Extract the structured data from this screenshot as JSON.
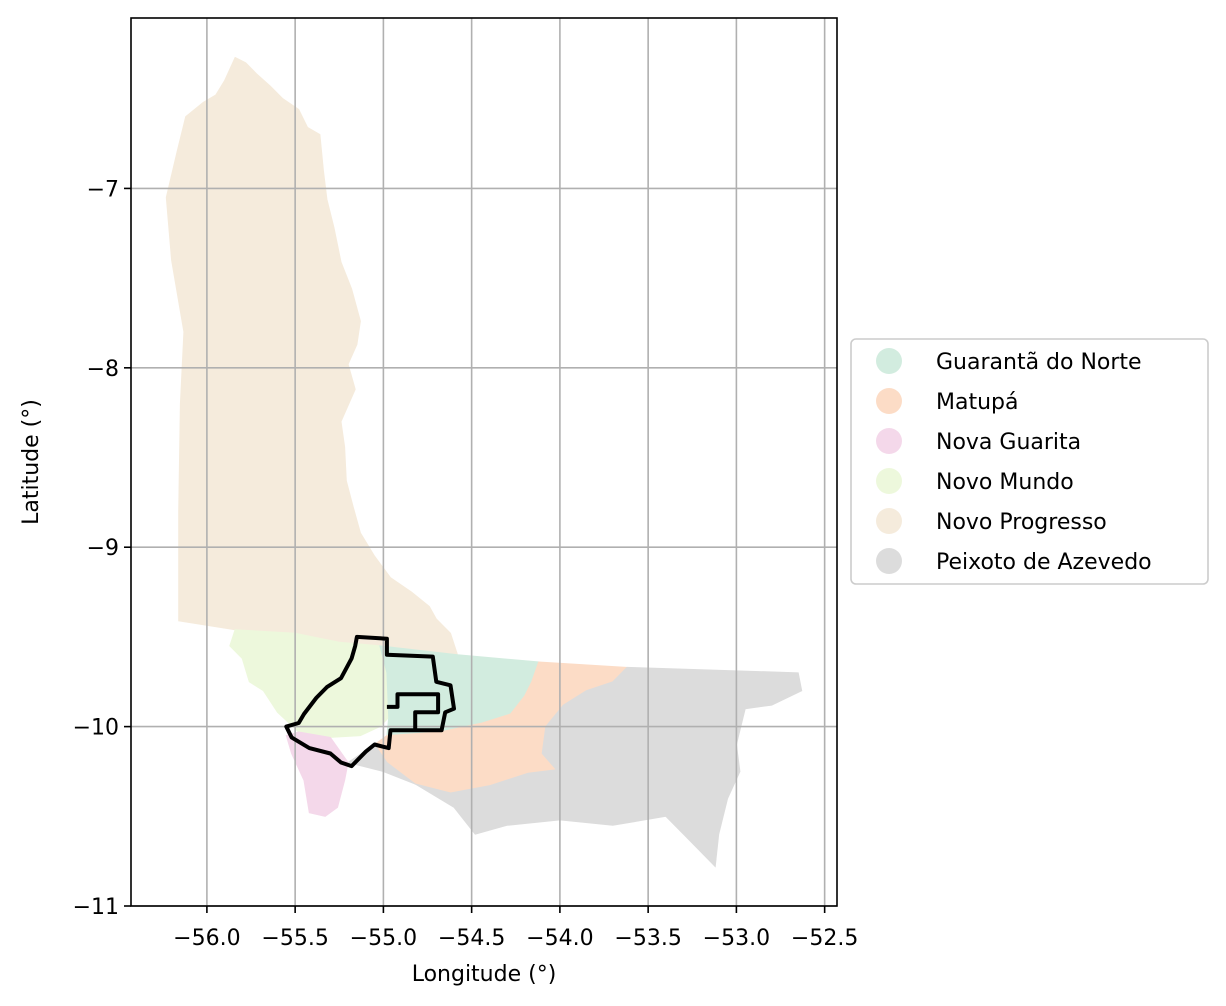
{
  "axes": {
    "xlabel": "Longitude (°)",
    "ylabel": "Latitude (°)",
    "xlim": [
      -56.43,
      -52.43
    ],
    "ylim": [
      -11.0,
      -6.05
    ],
    "xticks": [
      -56.0,
      -55.5,
      -55.0,
      -54.5,
      -54.0,
      -53.5,
      -53.0,
      -52.5
    ],
    "yticks": [
      -7,
      -8,
      -9,
      -10,
      -11
    ],
    "xtick_labels": [
      "−56.0",
      "−55.5",
      "−55.0",
      "−54.5",
      "−54.0",
      "−53.5",
      "−53.0",
      "−52.5"
    ],
    "ytick_labels": [
      "−7",
      "−8",
      "−9",
      "−10",
      "−11"
    ],
    "grid": true
  },
  "legend": {
    "placement": "right, outside plot",
    "items": [
      {
        "label": "Guarantã do Norte",
        "color": "#d2ecdf"
      },
      {
        "label": "Matupá",
        "color": "#fcdcc6"
      },
      {
        "label": "Nova Guarita",
        "color": "#f4d8ea"
      },
      {
        "label": "Novo Mundo",
        "color": "#edf8dc"
      },
      {
        "label": "Novo Progresso",
        "color": "#f5ebdc"
      },
      {
        "label": "Peixoto de Azevedo",
        "color": "#dcdcdc"
      }
    ]
  },
  "regions": [
    {
      "name": "Novo Progresso",
      "color": "#f5ebdc",
      "coords": [
        [
          -55.84,
          -6.27
        ],
        [
          -55.78,
          -6.3
        ],
        [
          -55.72,
          -6.36
        ],
        [
          -55.64,
          -6.43
        ],
        [
          -55.57,
          -6.5
        ],
        [
          -55.48,
          -6.56
        ],
        [
          -55.43,
          -6.66
        ],
        [
          -55.36,
          -6.7
        ],
        [
          -55.34,
          -6.9
        ],
        [
          -55.32,
          -7.06
        ],
        [
          -55.28,
          -7.22
        ],
        [
          -55.24,
          -7.41
        ],
        [
          -55.18,
          -7.56
        ],
        [
          -55.13,
          -7.74
        ],
        [
          -55.15,
          -7.87
        ],
        [
          -55.2,
          -7.98
        ],
        [
          -55.16,
          -8.12
        ],
        [
          -55.24,
          -8.3
        ],
        [
          -55.22,
          -8.44
        ],
        [
          -55.21,
          -8.63
        ],
        [
          -55.17,
          -8.78
        ],
        [
          -55.13,
          -8.92
        ],
        [
          -55.05,
          -9.05
        ],
        [
          -54.96,
          -9.17
        ],
        [
          -54.84,
          -9.25
        ],
        [
          -54.74,
          -9.33
        ],
        [
          -54.7,
          -9.4
        ],
        [
          -54.62,
          -9.48
        ],
        [
          -54.58,
          -9.6
        ],
        [
          -55.02,
          -9.55
        ],
        [
          -55.25,
          -9.53
        ],
        [
          -55.5,
          -9.48
        ],
        [
          -55.84,
          -9.46
        ],
        [
          -56.16,
          -9.41
        ],
        [
          -56.16,
          -8.8
        ],
        [
          -56.15,
          -8.2
        ],
        [
          -56.13,
          -7.8
        ],
        [
          -56.2,
          -7.4
        ],
        [
          -56.23,
          -7.05
        ],
        [
          -56.17,
          -6.8
        ],
        [
          -56.12,
          -6.6
        ],
        [
          -56.02,
          -6.52
        ],
        [
          -55.95,
          -6.48
        ],
        [
          -55.9,
          -6.4
        ]
      ]
    },
    {
      "name": "Novo Mundo",
      "color": "#edf8dc",
      "coords": [
        [
          -55.84,
          -9.46
        ],
        [
          -55.5,
          -9.48
        ],
        [
          -55.25,
          -9.53
        ],
        [
          -55.02,
          -9.55
        ],
        [
          -54.98,
          -9.7
        ],
        [
          -54.97,
          -9.95
        ],
        [
          -55.02,
          -10.0
        ],
        [
          -55.13,
          -10.05
        ],
        [
          -55.3,
          -10.06
        ],
        [
          -55.48,
          -10.03
        ],
        [
          -55.6,
          -9.92
        ],
        [
          -55.68,
          -9.8
        ],
        [
          -55.76,
          -9.75
        ],
        [
          -55.8,
          -9.62
        ],
        [
          -55.87,
          -9.55
        ]
      ]
    },
    {
      "name": "Guarantã do Norte",
      "color": "#d2ecdf",
      "coords": [
        [
          -55.02,
          -9.55
        ],
        [
          -54.58,
          -9.6
        ],
        [
          -54.12,
          -9.64
        ],
        [
          -54.16,
          -9.75
        ],
        [
          -54.2,
          -9.83
        ],
        [
          -54.28,
          -9.93
        ],
        [
          -54.44,
          -9.98
        ],
        [
          -54.68,
          -10.03
        ],
        [
          -54.98,
          -10.05
        ],
        [
          -54.97,
          -9.95
        ],
        [
          -54.98,
          -9.7
        ]
      ]
    },
    {
      "name": "Matupá",
      "color": "#fcdcc6",
      "coords": [
        [
          -54.12,
          -9.64
        ],
        [
          -53.62,
          -9.67
        ],
        [
          -53.7,
          -9.75
        ],
        [
          -53.85,
          -9.8
        ],
        [
          -53.98,
          -9.88
        ],
        [
          -54.08,
          -10.0
        ],
        [
          -54.1,
          -10.15
        ],
        [
          -54.02,
          -10.24
        ],
        [
          -54.18,
          -10.26
        ],
        [
          -54.4,
          -10.33
        ],
        [
          -54.62,
          -10.37
        ],
        [
          -54.82,
          -10.32
        ],
        [
          -54.98,
          -10.2
        ],
        [
          -55.05,
          -10.1
        ],
        [
          -54.98,
          -10.05
        ],
        [
          -54.68,
          -10.03
        ],
        [
          -54.44,
          -9.98
        ],
        [
          -54.28,
          -9.93
        ],
        [
          -54.2,
          -9.83
        ],
        [
          -54.16,
          -9.75
        ]
      ]
    },
    {
      "name": "Peixoto de Azevedo",
      "color": "#dcdcdc",
      "coords": [
        [
          -53.62,
          -9.67
        ],
        [
          -52.65,
          -9.7
        ],
        [
          -52.63,
          -9.8
        ],
        [
          -52.8,
          -9.88
        ],
        [
          -52.95,
          -9.9
        ],
        [
          -53.0,
          -10.1
        ],
        [
          -52.98,
          -10.25
        ],
        [
          -53.05,
          -10.4
        ],
        [
          -53.1,
          -10.6
        ],
        [
          -53.12,
          -10.78
        ],
        [
          -53.25,
          -10.65
        ],
        [
          -53.4,
          -10.5
        ],
        [
          -53.7,
          -10.55
        ],
        [
          -54.0,
          -10.52
        ],
        [
          -54.3,
          -10.55
        ],
        [
          -54.48,
          -10.6
        ],
        [
          -54.6,
          -10.45
        ],
        [
          -54.82,
          -10.32
        ],
        [
          -55.0,
          -10.25
        ],
        [
          -55.2,
          -10.2
        ],
        [
          -55.05,
          -10.1
        ],
        [
          -54.98,
          -10.2
        ],
        [
          -54.82,
          -10.32
        ],
        [
          -54.62,
          -10.37
        ],
        [
          -54.4,
          -10.33
        ],
        [
          -54.18,
          -10.26
        ],
        [
          -54.02,
          -10.24
        ],
        [
          -54.1,
          -10.15
        ],
        [
          -54.08,
          -10.0
        ],
        [
          -53.98,
          -9.88
        ],
        [
          -53.85,
          -9.8
        ],
        [
          -53.7,
          -9.75
        ]
      ]
    },
    {
      "name": "Nova Guarita",
      "color": "#f4d8ea",
      "coords": [
        [
          -55.48,
          -10.03
        ],
        [
          -55.3,
          -10.06
        ],
        [
          -55.2,
          -10.2
        ],
        [
          -55.22,
          -10.3
        ],
        [
          -55.26,
          -10.45
        ],
        [
          -55.33,
          -10.5
        ],
        [
          -55.42,
          -10.48
        ],
        [
          -55.45,
          -10.3
        ],
        [
          -55.52,
          -10.15
        ],
        [
          -55.55,
          -10.05
        ]
      ]
    }
  ],
  "outline": {
    "color": "#000000",
    "coords": [
      [
        -55.15,
        -9.5
      ],
      [
        -54.98,
        -9.51
      ],
      [
        -54.98,
        -9.6
      ],
      [
        -54.72,
        -9.61
      ],
      [
        -54.7,
        -9.75
      ],
      [
        -54.62,
        -9.77
      ],
      [
        -54.6,
        -9.9
      ],
      [
        -54.65,
        -9.92
      ],
      [
        -54.67,
        -10.02
      ],
      [
        -54.96,
        -10.02
      ],
      [
        -54.97,
        -10.12
      ],
      [
        -55.05,
        -10.1
      ],
      [
        -55.1,
        -10.14
      ],
      [
        -55.18,
        -10.22
      ],
      [
        -55.24,
        -10.2
      ],
      [
        -55.3,
        -10.15
      ],
      [
        -55.42,
        -10.12
      ],
      [
        -55.52,
        -10.06
      ],
      [
        -55.55,
        -10.0
      ],
      [
        -55.48,
        -9.98
      ],
      [
        -55.45,
        -9.93
      ],
      [
        -55.38,
        -9.84
      ],
      [
        -55.32,
        -9.78
      ],
      [
        -55.24,
        -9.73
      ],
      [
        -55.18,
        -9.62
      ],
      [
        -55.16,
        -9.55
      ]
    ],
    "inner_coords": [
      [
        -54.98,
        -9.89
      ],
      [
        -54.92,
        -9.89
      ],
      [
        -54.92,
        -9.82
      ],
      [
        -54.69,
        -9.82
      ],
      [
        -54.69,
        -9.92
      ],
      [
        -54.82,
        -9.92
      ],
      [
        -54.82,
        -10.02
      ]
    ]
  }
}
